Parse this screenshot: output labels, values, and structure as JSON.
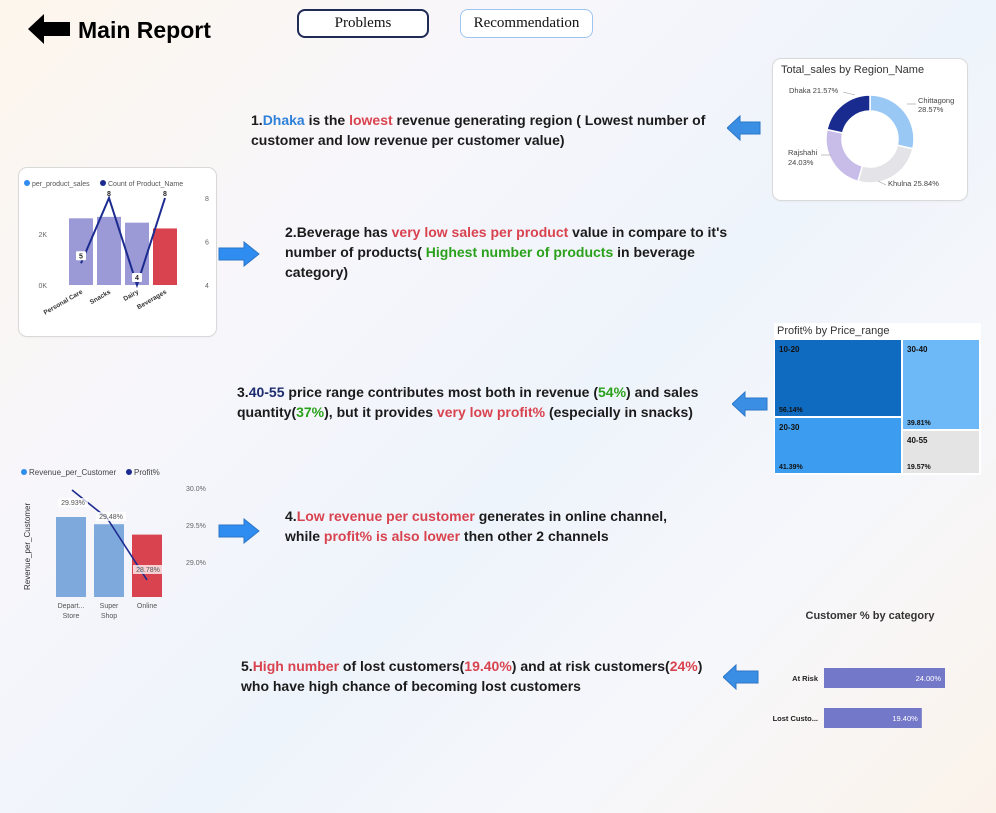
{
  "header": {
    "title": "Main Report",
    "nav_problems": "Problems",
    "nav_recommendation": "Recommendation"
  },
  "findings": [
    {
      "num": "1.",
      "parts": [
        {
          "t": "Dhaka",
          "c": "blue"
        },
        {
          "t": " is the "
        },
        {
          "t": "lowest",
          "c": "red"
        },
        {
          "t": "  revenue generating region ( Lowest number of customer and low  revenue per customer value)"
        }
      ]
    },
    {
      "num": "2.",
      "parts": [
        {
          "t": "Beverage has "
        },
        {
          "t": "very low sales per product",
          "c": "red"
        },
        {
          "t": " value in compare to it's number of products( "
        },
        {
          "t": "Highest number of products",
          "c": "green"
        },
        {
          "t": " in beverage category)"
        }
      ]
    },
    {
      "num": "3.",
      "parts": [
        {
          "t": "40-55",
          "c": "navy"
        },
        {
          "t": " price range contributes most  both in revenue ("
        },
        {
          "t": "54%",
          "c": "green"
        },
        {
          "t": ") and sales quantity("
        },
        {
          "t": "37%",
          "c": "green"
        },
        {
          "t": "), but it provides "
        },
        {
          "t": "very low profit%",
          "c": "red"
        },
        {
          "t": " (especially in snacks)"
        }
      ]
    },
    {
      "num": "4.",
      "parts": [
        {
          "t": "Low revenue per customer",
          "c": "red"
        },
        {
          "t": " generates in online channel, while "
        },
        {
          "t": "profit% is also lower",
          "c": "red"
        },
        {
          "t": " then other 2 channels"
        }
      ]
    },
    {
      "num": "5.",
      "parts": [
        {
          "t": "High number",
          "c": "red"
        },
        {
          "t": " of lost customers("
        },
        {
          "t": "19.40%",
          "c": "red"
        },
        {
          "t": ") and at risk customers("
        },
        {
          "t": "24%",
          "c": "red"
        },
        {
          "t": ") who have high chance of becoming lost customers"
        }
      ]
    }
  ],
  "colors": {
    "accent_arrow": "#2f8cf0",
    "bar_purple": "#9b9ad6",
    "bar_red": "#d9434f",
    "line_navy": "#1c2b8f",
    "tree_dark": "#0f6bbf",
    "tree_light": "#6db8f7",
    "tree_mid": "#3c9df0",
    "tree_grey": "#e4e4e4",
    "cust_bar": "#7478c9"
  },
  "chart_data": [
    {
      "type": "pie",
      "title": "Total_sales by Region_Name",
      "categories": [
        "Chittagong",
        "Khulna",
        "Rajshahi",
        "Dhaka"
      ],
      "values": [
        28.57,
        25.84,
        24.03,
        21.57
      ],
      "labels": [
        "Chittagong 28.57%",
        "Khulna 25.84%",
        "Rajshahi 24.03%",
        "Dhaka 21.57%"
      ],
      "colors": [
        "#9ac8f5",
        "#e4e4e8",
        "#c7bde8",
        "#1a2b8f"
      ]
    },
    {
      "type": "bar",
      "legend": [
        "per_product_sales",
        "Count of Product_Name"
      ],
      "categories": [
        "Personal Care",
        "Snacks",
        "Dairy",
        "Beverages"
      ],
      "series": [
        {
          "name": "per_product_sales",
          "values": [
            2300,
            2350,
            2150,
            1950
          ]
        },
        {
          "name": "Count of Product_Name",
          "values": [
            5,
            8,
            4,
            8
          ]
        }
      ],
      "y_ticks": [
        "0K",
        "2K"
      ],
      "y2_ticks": [
        "4",
        "6",
        "8"
      ],
      "count_labels": [
        "5",
        "8",
        "4",
        "8"
      ],
      "ylim": [
        0,
        3000
      ],
      "y2lim": [
        4,
        8
      ]
    },
    {
      "type": "heatmap",
      "title": "Profit% by Price_range",
      "cells": [
        {
          "range": "10-20",
          "value": "56.14%"
        },
        {
          "range": "30-40",
          "value": "39.81%"
        },
        {
          "range": "20-30",
          "value": "41.39%"
        },
        {
          "range": "40-55",
          "value": "19.57%"
        }
      ]
    },
    {
      "type": "bar",
      "legend": [
        "Revenue_per_Customer",
        "Profit%"
      ],
      "ylabel": "Revenue_per_Customer",
      "categories": [
        "Depart... Store",
        "Super Shop",
        "Online"
      ],
      "category_lines": [
        [
          "Depart...",
          "Store"
        ],
        [
          "Super",
          "Shop"
        ],
        [
          "Online"
        ]
      ],
      "series": [
        {
          "name": "Revenue_per_Customer",
          "values": [
            100,
            91,
            78
          ]
        },
        {
          "name": "Profit%",
          "values": [
            29.93,
            29.48,
            28.78
          ]
        }
      ],
      "profit_labels": [
        "29.93%",
        "29.48%",
        "28.78%"
      ],
      "y2_ticks": [
        "30.0%",
        "29.5%",
        "29.0%"
      ],
      "y2lim": [
        28.7,
        30.0
      ]
    },
    {
      "type": "bar",
      "title": "Customer % by category",
      "categories": [
        "At Risk",
        "Lost Custo..."
      ],
      "values": [
        24.0,
        19.4
      ],
      "value_labels": [
        "24.00%",
        "19.40%"
      ],
      "xlim": [
        0,
        24.0
      ]
    }
  ]
}
